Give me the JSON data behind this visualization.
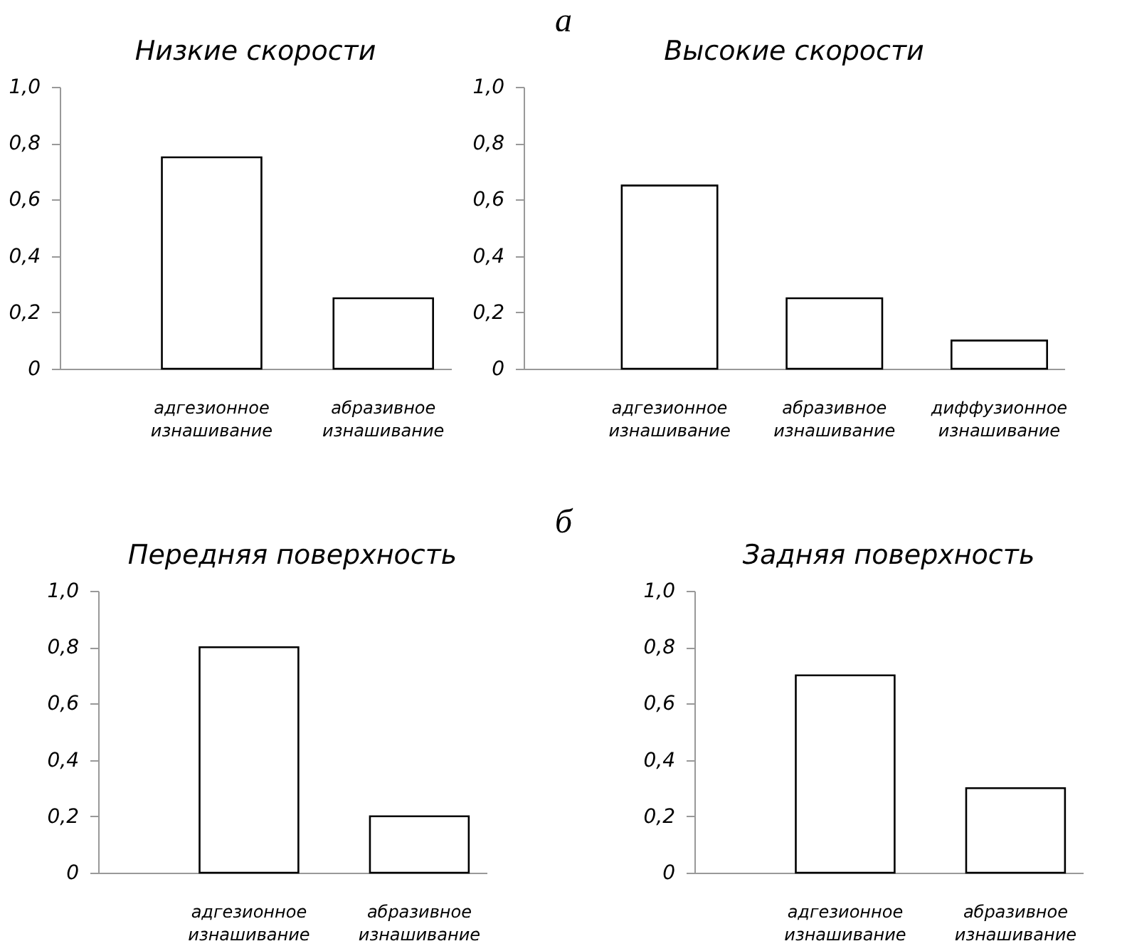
{
  "chart_data": [
    {
      "type": "bar",
      "title": "Низкие скорости",
      "categories": [
        "адгезионное изнашивание",
        "абразивное изнашивание"
      ],
      "values": [
        0.75,
        0.25
      ],
      "color": "#ffffff",
      "ylim": [
        0,
        1
      ],
      "yticks": [
        {
          "value": 0,
          "label": "0"
        },
        {
          "value": 0.2,
          "label": "0,2"
        },
        {
          "value": 0.4,
          "label": "0,4"
        },
        {
          "value": 0.6,
          "label": "0,6"
        },
        {
          "value": 0.8,
          "label": "0,8"
        },
        {
          "value": 1,
          "label": "1,0"
        }
      ],
      "annotations": [
        "а"
      ]
    },
    {
      "type": "bar",
      "title": "Высокие скорости",
      "categories": [
        "адгезионное изнашивание",
        "абразивное изнашивание",
        "диффузионное изнашивание"
      ],
      "values": [
        0.65,
        0.25,
        0.1
      ],
      "color": "#ffffff",
      "ylim": [
        0,
        1
      ],
      "yticks": [
        {
          "value": 0,
          "label": "0"
        },
        {
          "value": 0.2,
          "label": "0,2"
        },
        {
          "value": 0.4,
          "label": "0,4"
        },
        {
          "value": 0.6,
          "label": "0,6"
        },
        {
          "value": 0.8,
          "label": "0,8"
        },
        {
          "value": 1,
          "label": "1,0"
        }
      ]
    },
    {
      "type": "bar",
      "title": "Передняя поверхность",
      "categories": [
        "адгезионное изнашивание",
        "абразивное изнашивание"
      ],
      "values": [
        0.8,
        0.2
      ],
      "color": "#ffffff",
      "ylim": [
        0,
        1
      ],
      "yticks": [
        {
          "value": 0,
          "label": "0"
        },
        {
          "value": 0.2,
          "label": "0,2"
        },
        {
          "value": 0.4,
          "label": "0,4"
        },
        {
          "value": 0.6,
          "label": "0,6"
        },
        {
          "value": 0.8,
          "label": "0,8"
        },
        {
          "value": 1,
          "label": "1,0"
        }
      ],
      "annotations": [
        "б"
      ]
    },
    {
      "type": "bar",
      "title": "Задняя поверхность",
      "categories": [
        "адгезионное изнашивание",
        "абразивное изнашивание"
      ],
      "values": [
        0.7,
        0.3
      ],
      "color": "#ffffff",
      "ylim": [
        0,
        1
      ],
      "yticks": [
        {
          "value": 0,
          "label": "0"
        },
        {
          "value": 0.2,
          "label": "0,2"
        },
        {
          "value": 0.4,
          "label": "0,4"
        },
        {
          "value": 0.6,
          "label": "0,6"
        },
        {
          "value": 0.8,
          "label": "0,8"
        },
        {
          "value": 1,
          "label": "1,0"
        }
      ]
    }
  ]
}
